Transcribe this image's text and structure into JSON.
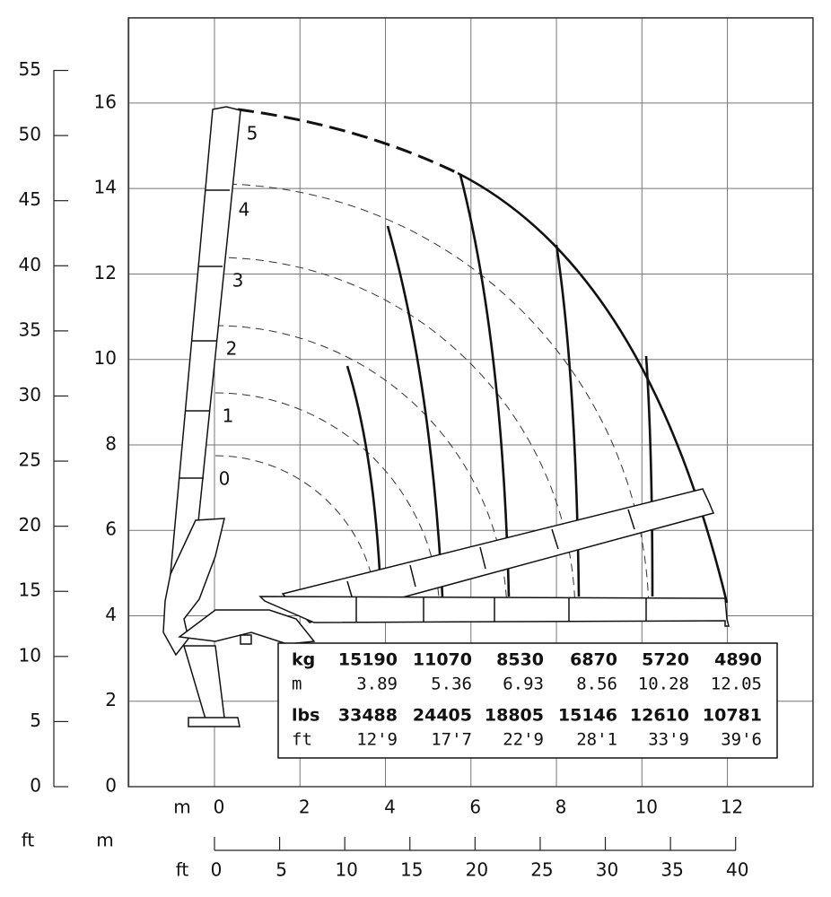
{
  "axes": {
    "ft_title": "ft",
    "m_title": "m",
    "ft_ticks": [
      0,
      5,
      10,
      15,
      20,
      25,
      30,
      35,
      40,
      45,
      50,
      55
    ],
    "m_ticks": [
      0,
      2,
      4,
      6,
      8,
      10,
      12,
      14,
      16
    ],
    "bottom_m_title": "m",
    "bottom_m_ticks": [
      0,
      2,
      4,
      6,
      8,
      10,
      12
    ],
    "bottom_ft_title": "ft",
    "bottom_ft_ticks": [
      0,
      5,
      10,
      15,
      20,
      25,
      30,
      35,
      40
    ]
  },
  "boom_positions": [
    0,
    1,
    2,
    3,
    4,
    5
  ],
  "load_table": {
    "rows": [
      {
        "unit": "kg",
        "values": [
          15190,
          11070,
          8530,
          6870,
          5720,
          4890
        ]
      },
      {
        "unit": "m",
        "values": [
          3.89,
          5.36,
          6.93,
          8.56,
          10.28,
          12.05
        ]
      },
      {
        "unit": "lbs",
        "values": [
          33488,
          24405,
          18805,
          15146,
          12610,
          10781
        ]
      },
      {
        "unit": "ft",
        "values": [
          "12'9",
          "17'7",
          "22'9",
          "28'1",
          "33'9",
          "39'6"
        ]
      }
    ]
  }
}
